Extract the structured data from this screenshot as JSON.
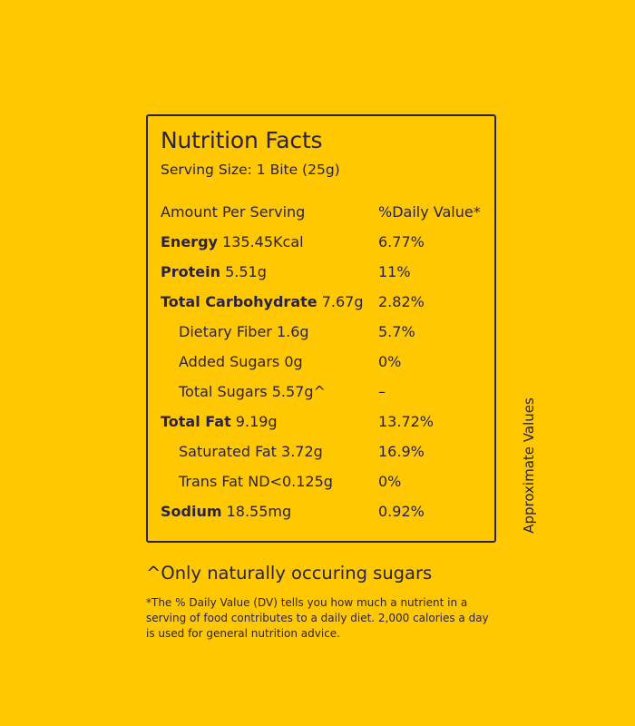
{
  "label": {
    "title": "Nutrition Facts",
    "serving": "Serving Size: 1 Bite (25g)",
    "header": {
      "amount": "Amount Per Serving",
      "dv": "%Daily Value*"
    },
    "rows": [
      {
        "name": "Energy",
        "amount": " 135.45Kcal",
        "dv": "6.77%"
      },
      {
        "name": "Protein",
        "amount": " 5.51g",
        "dv": "11%"
      },
      {
        "name": "Total Carbohydrate",
        "amount": " 7.67g",
        "dv": "2.82%"
      },
      {
        "name": "Dietary Fiber 1.6g",
        "dv": "5.7%"
      },
      {
        "name": "Added Sugars 0g",
        "dv": "0%"
      },
      {
        "name": "Total Sugars 5.57g^",
        "dv": "–"
      },
      {
        "name": "Total Fat",
        "amount": " 9.19g",
        "dv": "13.72%"
      },
      {
        "name": "Saturated Fat 3.72g",
        "dv": "16.9%"
      },
      {
        "name": "Trans Fat ND<0.125g",
        "dv": "0%"
      },
      {
        "name": "Sodium",
        "amount": " 18.55mg",
        "dv": "0.92%"
      }
    ]
  },
  "side_label": "Approximate Values",
  "note": "^Only naturally occuring sugars",
  "footnote": "*The % Daily Value (DV) tells you how much a nutrient in a serving of food contributes to a daily diet. 2,000 calories a day is used for general nutrition advice."
}
